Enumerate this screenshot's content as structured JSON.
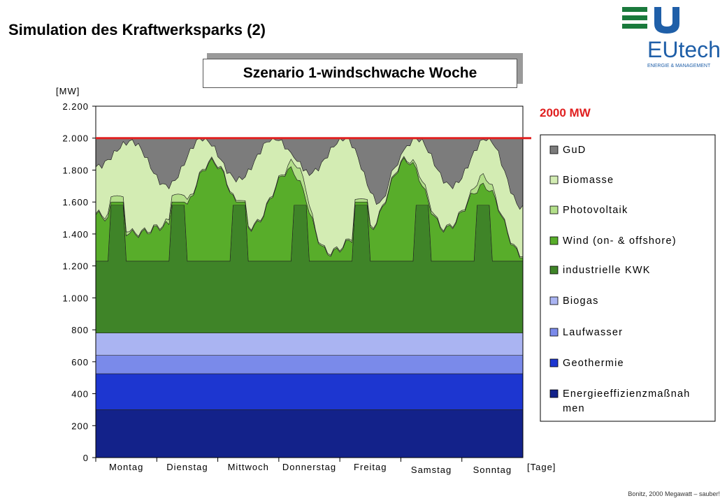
{
  "page": {
    "title": "Simulation des Kraftwerksparks (2)",
    "scenario": "Szenario 1-windschwache Woche",
    "footnote": "Bonitz, 2000 Megawatt – sauber!"
  },
  "logo": {
    "text": "EUtech",
    "subtext": "ENERGIE & MANAGEMENT",
    "green": "#1a7a3c",
    "blue": "#1f5fa8"
  },
  "chart_data": {
    "type": "area",
    "stacked": true,
    "ylabel": "[MW]",
    "xlabel": "[Tage]",
    "ylim": [
      0,
      2200
    ],
    "yticks": [
      0,
      200,
      400,
      600,
      800,
      1000,
      1200,
      1400,
      1600,
      1800,
      2000,
      2200
    ],
    "ytick_labels": [
      "0",
      "200",
      "400",
      "600",
      "800",
      "1.000",
      "1.200",
      "1.400",
      "1.600",
      "1.800",
      "2.000",
      "2.200"
    ],
    "categories": [
      "Montag",
      "Dienstag",
      "Mittwoch",
      "Donnerstag",
      "Freitag",
      "Samstag",
      "Sonntag"
    ],
    "reference_line": {
      "value": 2000,
      "label": "2000 MW",
      "color": "#e02020"
    },
    "baseload": [
      {
        "name": "Energieeffizienzmaßnahmen",
        "value": 300,
        "color": "#13228a"
      },
      {
        "name": "Geothermie",
        "value": 225,
        "color": "#1d36d0"
      },
      {
        "name": "Laufwasser",
        "value": 115,
        "color": "#7a8aea"
      },
      {
        "name": "Biogas",
        "value": 140,
        "color": "#aab4f2"
      },
      {
        "name": "industrielle KWK",
        "value": 450,
        "peak_value": 800,
        "color": "#3f8428"
      }
    ],
    "hourly_series": [
      {
        "name": "Wind (on- & offshore)",
        "color": "#58ad2a",
        "daily_top": [
          1520,
          1400,
          1460,
          1850,
          1440,
          1800,
          1280,
          1420,
          1860,
          1430,
          1700,
          1260
        ]
      },
      {
        "name": "Photovoltaik",
        "color": "#b3df8a",
        "peak_add": [
          40,
          50,
          10,
          80,
          20,
          30,
          60
        ]
      },
      {
        "name": "Biomasse",
        "color": "#d3ecb3",
        "top": [
          1820,
          1980,
          1700,
          2000,
          1740,
          2000,
          1780,
          2000,
          1590,
          2000,
          1700,
          2000,
          1560
        ]
      },
      {
        "name": "GuD",
        "color": "#7c7c7c"
      }
    ],
    "legend": [
      "GuD",
      "Biomasse",
      "Photovoltaik",
      "Wind (on- & offshore)",
      "industrielle KWK",
      "Biogas",
      "Laufwasser",
      "Geothermie",
      "Energieeffizienzmaßnah men"
    ],
    "legend_colors": [
      "#7c7c7c",
      "#d3ecb3",
      "#b3df8a",
      "#58ad2a",
      "#3f8428",
      "#aab4f2",
      "#7a8aea",
      "#1d36d0",
      "#13228a"
    ]
  }
}
